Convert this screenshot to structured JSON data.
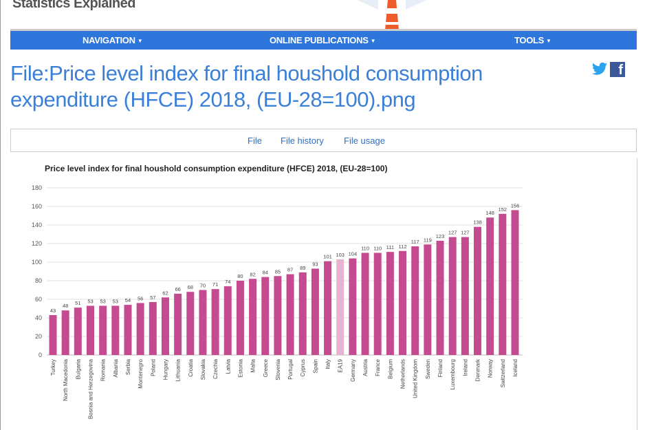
{
  "site": {
    "brand": "Statistics Explained"
  },
  "nav": {
    "items": [
      {
        "label": "NAVIGATION"
      },
      {
        "label": "ONLINE PUBLICATIONS"
      },
      {
        "label": "TOOLS"
      }
    ]
  },
  "page": {
    "title": "File:Price level index for final houshold consumption expenditure (HFCE) 2018, (EU-28=100).png"
  },
  "social": {
    "icons": [
      "twitter-icon",
      "facebook-icon"
    ],
    "facebook_glyph": "f"
  },
  "tabs": [
    {
      "label": "File"
    },
    {
      "label": "File history"
    },
    {
      "label": "File usage"
    }
  ],
  "colors": {
    "accent": "#2f76dc",
    "bar": "#c44b90",
    "highlight_bar": "#e8b3d0"
  },
  "chart_data": {
    "type": "bar",
    "title": "Price level index for final houshold consumption expenditure (HFCE) 2018, (EU-28=100)",
    "xlabel": "",
    "ylabel": "",
    "ylim": [
      0,
      180
    ],
    "yticks": [
      0,
      20,
      40,
      60,
      80,
      100,
      120,
      140,
      160,
      180
    ],
    "grid": true,
    "highlight": "EA19",
    "categories": [
      "Turkey",
      "North Macedonia",
      "Bulgaria",
      "Bosnia and Herzegovina",
      "Romania",
      "Albania",
      "Serbia",
      "Montenegro",
      "Poland",
      "Hungary",
      "Lithuania",
      "Croatia",
      "Slovakia",
      "Czechia",
      "Latvia",
      "Estonia",
      "Malta",
      "Greece",
      "Slovenia",
      "Portugal",
      "Cyprus",
      "Spain",
      "Italy",
      "EA19",
      "Germany",
      "Austria",
      "France",
      "Belgium",
      "Netherlands",
      "United Kingdom",
      "Sweden",
      "Finland",
      "Luxembourg",
      "Ireland",
      "Denmark",
      "Norway",
      "Switzerland",
      "Iceland"
    ],
    "values": [
      43,
      48,
      51,
      53,
      53,
      53,
      54,
      56,
      57,
      62,
      66,
      68,
      70,
      71,
      74,
      80,
      82,
      84,
      85,
      87,
      89,
      93,
      101,
      103,
      104,
      110,
      110,
      111,
      112,
      117,
      119,
      123,
      127,
      127,
      138,
      148,
      152,
      156
    ]
  }
}
